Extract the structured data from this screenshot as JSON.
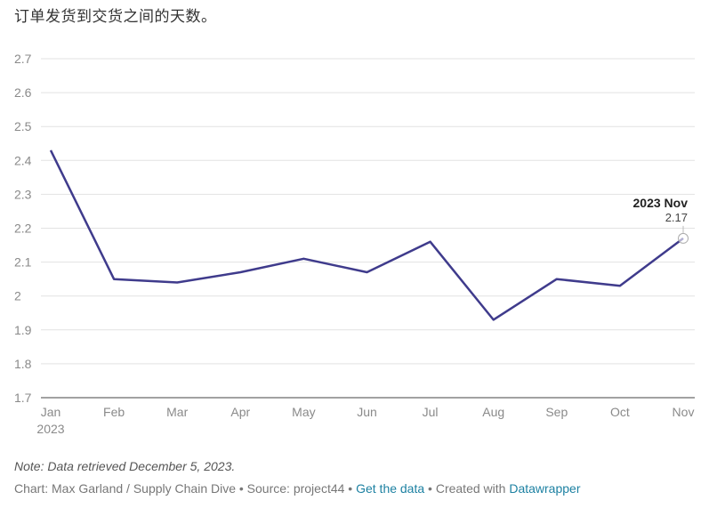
{
  "header": {
    "subtitle": "订单发货到交货之间的天数。"
  },
  "chart_data": {
    "type": "line",
    "title": "",
    "xlabel": "",
    "ylabel": "",
    "categories": [
      "Jan",
      "Feb",
      "Mar",
      "Apr",
      "May",
      "Jun",
      "Jul",
      "Aug",
      "Sep",
      "Oct",
      "Nov"
    ],
    "year_label": "2023",
    "series": [
      {
        "values": [
          2.43,
          2.05,
          2.04,
          2.07,
          2.11,
          2.07,
          2.16,
          1.93,
          2.05,
          2.03,
          2.17
        ],
        "color": "#3f3b8c"
      }
    ],
    "ylim": [
      1.7,
      2.7
    ],
    "yticks": [
      "1.7",
      "1.8",
      "1.9",
      "2",
      "2.1",
      "2.2",
      "2.3",
      "2.4",
      "2.5",
      "2.6",
      "2.7"
    ],
    "grid": true,
    "annotation": {
      "title": "2023 Nov",
      "value": "2.17"
    }
  },
  "footer": {
    "note": "Note: Data retrieved December 5, 2023.",
    "credit": "Chart: Max Garland / Supply Chain Dive • Source: project44 • ",
    "get_data_link": "Get the data",
    "created_with": " • Created with ",
    "datawrapper_link": "Datawrapper"
  }
}
